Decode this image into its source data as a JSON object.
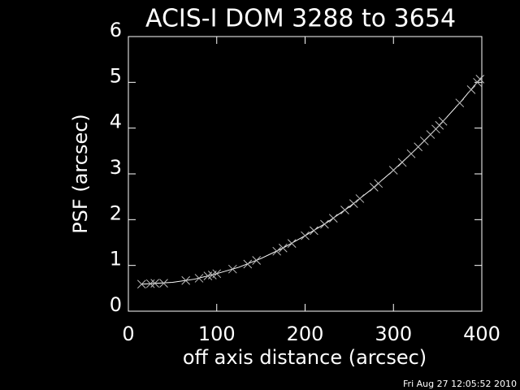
{
  "chart_data": {
    "type": "scatter",
    "title": "ACIS-I DOM 3288 to 3654",
    "x_label": "off axis distance (arcsec)",
    "y_label": "PSF (arcsec)",
    "timestamp": "Fri Aug 27 12:05:52 2010",
    "xlim": [
      0,
      400
    ],
    "ylim": [
      0,
      6
    ],
    "xticks": [
      0,
      100,
      200,
      300,
      400
    ],
    "yticks": [
      0,
      1,
      2,
      3,
      4,
      5,
      6
    ],
    "points": {
      "color": "#bbbbbb",
      "x": [
        15,
        25,
        30,
        40,
        65,
        80,
        90,
        95,
        100,
        118,
        135,
        145,
        168,
        175,
        185,
        200,
        210,
        222,
        232,
        245,
        255,
        262,
        278,
        283,
        300,
        310,
        320,
        328,
        335,
        342,
        348,
        352,
        356,
        375,
        388,
        395,
        398
      ],
      "values": [
        0.59,
        0.6,
        0.61,
        0.61,
        0.67,
        0.72,
        0.77,
        0.79,
        0.82,
        0.92,
        1.03,
        1.11,
        1.31,
        1.38,
        1.48,
        1.65,
        1.76,
        1.9,
        2.03,
        2.21,
        2.35,
        2.46,
        2.71,
        2.79,
        3.08,
        3.25,
        3.44,
        3.59,
        3.72,
        3.86,
        3.98,
        4.06,
        4.15,
        4.55,
        4.84,
        5.0,
        5.07
      ]
    },
    "fit": {
      "color": "#ffffff",
      "x": [
        15,
        50,
        75,
        100,
        125,
        150,
        175,
        200,
        225,
        250,
        275,
        300,
        325,
        350,
        375,
        400
      ],
      "values": [
        0.59,
        0.63,
        0.7,
        0.82,
        0.96,
        1.15,
        1.38,
        1.65,
        1.94,
        2.28,
        2.66,
        3.08,
        3.53,
        4.02,
        4.55,
        5.12
      ]
    }
  }
}
